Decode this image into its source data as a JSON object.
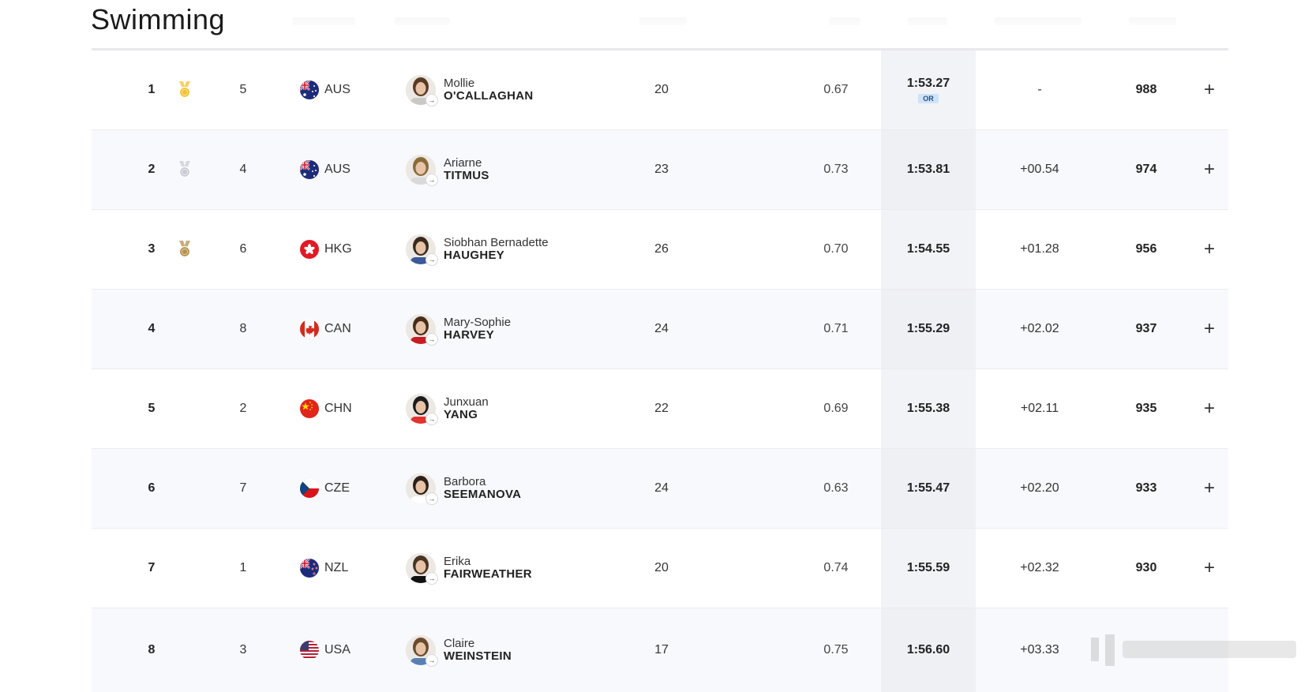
{
  "page": {
    "title": "Swimming"
  },
  "colors": {
    "gold": "#f2c230",
    "silver": "#c9cdd3",
    "bronze": "#b5924c",
    "or_badge": "#cfe3f7"
  },
  "rows": [
    {
      "rank": "1",
      "medal": "gold",
      "lane": "5",
      "noc": "AUS",
      "flag": "flag-australia",
      "given": "Mollie",
      "family": "O'CALLAGHAN",
      "age": "20",
      "reaction": "0.67",
      "time": "1:53.27",
      "record": "OR",
      "behind": "-",
      "points": "988"
    },
    {
      "rank": "2",
      "medal": "silver",
      "lane": "4",
      "noc": "AUS",
      "flag": "flag-australia",
      "given": "Ariarne",
      "family": "TITMUS",
      "age": "23",
      "reaction": "0.73",
      "time": "1:53.81",
      "record": "",
      "behind": "+00.54",
      "points": "974"
    },
    {
      "rank": "3",
      "medal": "bronze",
      "lane": "6",
      "noc": "HKG",
      "flag": "flag-hong-kong",
      "given": "Siobhan Bernadette",
      "family": "HAUGHEY",
      "age": "26",
      "reaction": "0.70",
      "time": "1:54.55",
      "record": "",
      "behind": "+01.28",
      "points": "956"
    },
    {
      "rank": "4",
      "medal": "",
      "lane": "8",
      "noc": "CAN",
      "flag": "flag-canada",
      "given": "Mary-Sophie",
      "family": "HARVEY",
      "age": "24",
      "reaction": "0.71",
      "time": "1:55.29",
      "record": "",
      "behind": "+02.02",
      "points": "937"
    },
    {
      "rank": "5",
      "medal": "",
      "lane": "2",
      "noc": "CHN",
      "flag": "flag-china",
      "given": "Junxuan",
      "family": "YANG",
      "age": "22",
      "reaction": "0.69",
      "time": "1:55.38",
      "record": "",
      "behind": "+02.11",
      "points": "935"
    },
    {
      "rank": "6",
      "medal": "",
      "lane": "7",
      "noc": "CZE",
      "flag": "flag-czechia",
      "given": "Barbora",
      "family": "SEEMANOVA",
      "age": "24",
      "reaction": "0.63",
      "time": "1:55.47",
      "record": "",
      "behind": "+02.20",
      "points": "933"
    },
    {
      "rank": "7",
      "medal": "",
      "lane": "1",
      "noc": "NZL",
      "flag": "flag-new-zealand",
      "given": "Erika",
      "family": "FAIRWEATHER",
      "age": "20",
      "reaction": "0.74",
      "time": "1:55.59",
      "record": "",
      "behind": "+02.32",
      "points": "930"
    },
    {
      "rank": "8",
      "medal": "",
      "lane": "3",
      "noc": "USA",
      "flag": "flag-usa",
      "given": "Claire",
      "family": "WEINSTEIN",
      "age": "17",
      "reaction": "0.75",
      "time": "1:56.60",
      "record": "",
      "behind": "+03.33",
      "points": ""
    }
  ],
  "expand_symbol": "+",
  "avatar_arrow": "→"
}
